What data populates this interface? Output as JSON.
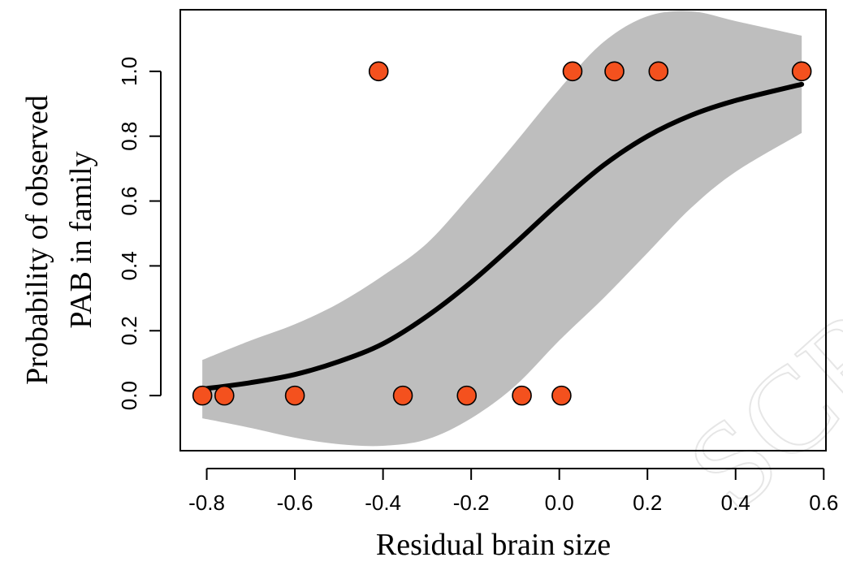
{
  "watermark": "SCR",
  "chart_data": {
    "type": "scatter",
    "title": "",
    "xlabel": "Residual brain size",
    "ylabel_lines": [
      "Probability of observed",
      "PAB in family"
    ],
    "xlim": [
      -0.86,
      0.605
    ],
    "ylim": [
      -0.17,
      1.19
    ],
    "x_ticks": [
      -0.8,
      -0.6,
      -0.4,
      -0.2,
      0.0,
      0.2,
      0.4,
      0.6
    ],
    "x_tick_labels": [
      "-0.8",
      "-0.6",
      "-0.4",
      "-0.2",
      "0.0",
      "0.2",
      "0.4",
      "0.6"
    ],
    "y_ticks": [
      0.0,
      0.2,
      0.4,
      0.6,
      0.8,
      1.0
    ],
    "y_tick_labels": [
      "0.0",
      "0.2",
      "0.4",
      "0.6",
      "0.8",
      "1.0"
    ],
    "grid": false,
    "legend": "none",
    "point_color": "#f4511e",
    "point_edge_color": "#000000",
    "curve_color": "#000000",
    "band_color": "#bebebe",
    "points": [
      {
        "x": -0.81,
        "y": 0
      },
      {
        "x": -0.76,
        "y": 0
      },
      {
        "x": -0.6,
        "y": 0
      },
      {
        "x": -0.41,
        "y": 1
      },
      {
        "x": -0.355,
        "y": 0
      },
      {
        "x": -0.21,
        "y": 0
      },
      {
        "x": -0.085,
        "y": 0
      },
      {
        "x": 0.005,
        "y": 0
      },
      {
        "x": 0.03,
        "y": 1
      },
      {
        "x": 0.125,
        "y": 1
      },
      {
        "x": 0.225,
        "y": 1
      },
      {
        "x": 0.55,
        "y": 1
      }
    ],
    "fit": {
      "x": [
        -0.81,
        -0.7,
        -0.6,
        -0.5,
        -0.4,
        -0.3,
        -0.2,
        -0.1,
        0.0,
        0.1,
        0.2,
        0.3,
        0.4,
        0.55
      ],
      "y": [
        0.02,
        0.04,
        0.065,
        0.105,
        0.16,
        0.245,
        0.35,
        0.47,
        0.595,
        0.71,
        0.8,
        0.865,
        0.91,
        0.96
      ],
      "lower": [
        -0.07,
        -0.1,
        -0.13,
        -0.15,
        -0.155,
        -0.135,
        -0.07,
        0.03,
        0.17,
        0.3,
        0.44,
        0.58,
        0.69,
        0.81
      ],
      "upper": [
        0.11,
        0.17,
        0.22,
        0.285,
        0.37,
        0.47,
        0.62,
        0.78,
        0.945,
        1.09,
        1.17,
        1.185,
        1.155,
        1.11
      ]
    }
  }
}
